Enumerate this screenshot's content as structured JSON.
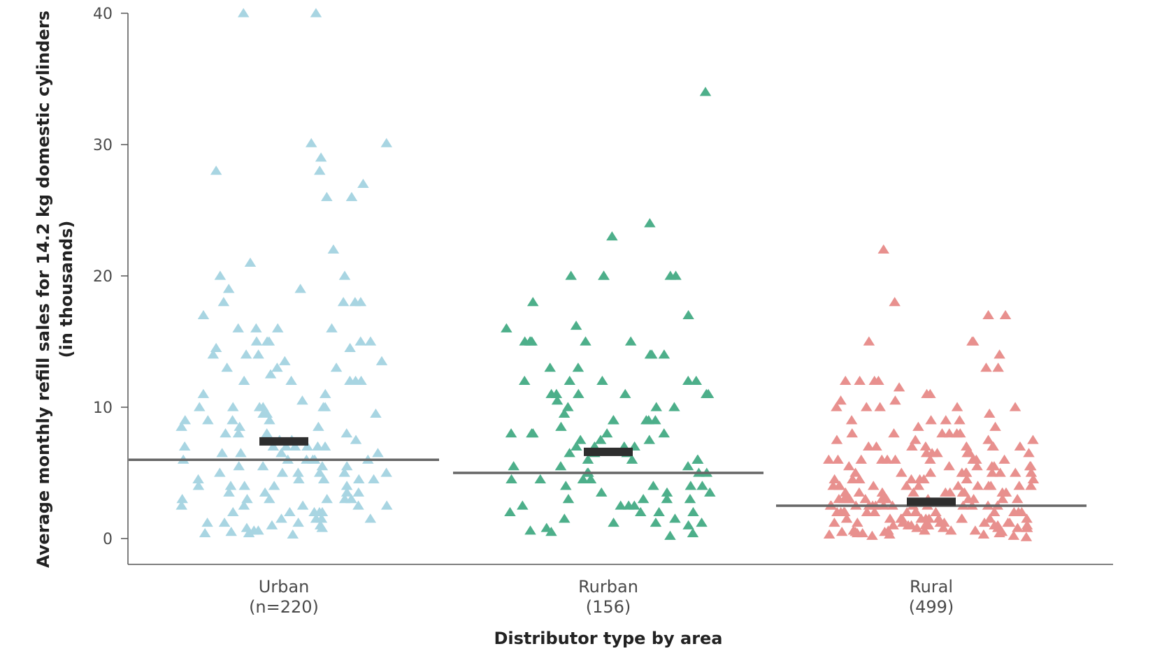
{
  "chart_data": {
    "type": "scatter",
    "title": "",
    "xlabel": "Distributor type by area",
    "ylabel_lines": [
      "Average monthly refill sales for 14.2 kg domestic cylinders",
      "(in thousands)"
    ],
    "ylim": [
      0,
      40
    ],
    "yticks": [
      0,
      10,
      20,
      30,
      40
    ],
    "grid": false,
    "legend": "none",
    "marker": "triangle",
    "series": [
      {
        "category_lines": [
          "Urban",
          "(n=220)"
        ],
        "color": "#a8d5e2",
        "median": 6.0,
        "mean": 7.4,
        "highlighted_points": [
          40,
          40,
          30.1,
          30.1,
          29,
          28,
          28,
          27,
          26,
          26,
          22,
          21,
          20,
          20,
          19,
          19,
          18,
          18,
          18,
          18,
          17,
          16,
          16,
          16,
          16,
          15,
          15,
          15,
          15,
          15,
          14.5,
          14.5,
          14,
          14,
          14,
          13.5,
          13.5,
          13,
          13,
          13,
          12.5,
          12,
          12,
          12,
          12,
          12,
          11,
          11,
          10.5,
          10,
          10,
          10,
          10,
          10,
          10,
          9.5,
          9.5,
          9.5,
          9,
          9,
          9,
          9,
          8.5,
          8.5,
          8.5,
          8,
          8,
          8,
          8,
          7.5,
          7.5,
          7.5,
          7,
          7,
          7,
          7,
          7,
          7,
          7,
          6.5,
          6.5,
          6.5,
          6.5,
          6,
          6,
          6,
          6,
          6,
          6,
          5.5,
          5.5,
          5.5,
          5.5,
          5,
          5,
          5,
          5,
          5,
          5,
          4.5,
          4.5,
          4.5,
          4.5,
          4.5,
          4,
          4,
          4,
          4,
          4,
          3.5,
          3.5,
          3.5,
          3.5,
          3,
          3,
          3,
          3,
          3,
          3,
          2.5,
          2.5,
          2.5,
          2.5,
          2.5,
          2,
          2,
          2,
          2,
          2,
          1.5,
          1.5,
          1.5,
          1.5,
          1.2,
          1.2,
          1.2,
          1,
          1,
          0.8,
          0.8,
          0.6,
          0.6,
          0.5,
          0.4,
          0.4,
          0.3
        ]
      },
      {
        "category_lines": [
          "Rurban",
          "(156)"
        ],
        "color": "#4daf8a",
        "median": 5.0,
        "mean": 6.6,
        "highlighted_points": [
          34,
          24,
          23,
          20,
          20,
          20,
          20,
          20,
          18,
          17,
          16.2,
          16,
          15,
          15,
          15,
          15,
          15,
          15,
          14,
          14,
          14,
          13,
          13,
          12,
          12,
          12,
          12,
          12,
          11,
          11,
          11,
          11,
          11,
          11,
          10.5,
          10,
          10,
          10,
          9.5,
          9,
          9,
          9,
          9,
          9,
          8.5,
          8,
          8,
          8,
          8,
          8,
          7.5,
          7.5,
          7.5,
          7,
          7,
          7,
          7,
          6.5,
          6.5,
          6.5,
          6,
          6,
          6,
          6,
          5.5,
          5.5,
          5.5,
          5,
          5,
          5,
          5,
          4.5,
          4.5,
          4.5,
          4.5,
          4,
          4,
          4,
          4,
          3.5,
          3.5,
          3.5,
          3,
          3,
          3,
          3,
          2.5,
          2.5,
          2.5,
          2.5,
          2,
          2,
          2,
          2,
          1.5,
          1.5,
          1.2,
          1.2,
          1.2,
          1,
          0.8,
          0.6,
          0.5,
          0.4,
          0.2
        ]
      },
      {
        "category_lines": [
          "Rural",
          "(499)"
        ],
        "color": "#e8908e",
        "median": 2.5,
        "mean": 2.8,
        "highlighted_points": [
          22,
          18,
          17,
          17,
          15,
          15,
          15,
          14,
          13,
          13,
          12,
          12,
          12,
          12,
          11.5,
          11,
          11,
          10.5,
          10.5,
          10,
          10,
          10,
          10,
          10,
          9.5,
          9,
          9,
          9,
          9,
          8.5,
          8.5,
          8,
          8,
          8,
          8,
          8,
          8,
          7.5,
          7.5,
          7.5,
          7.5,
          7,
          7,
          7,
          7,
          7,
          7,
          7,
          7,
          6.5,
          6.5,
          6.5,
          6.5,
          6.5,
          6.5,
          6,
          6,
          6,
          6,
          6,
          6,
          6,
          6,
          6,
          6,
          5.5,
          5.5,
          5.5,
          5.5,
          5.5,
          5.5,
          5.5,
          5,
          5,
          5,
          5,
          5,
          5,
          5,
          5,
          5,
          5,
          4.5,
          4.5,
          4.5,
          4.5,
          4.5,
          4.5,
          4.5,
          4.5,
          4,
          4,
          4,
          4,
          4,
          4,
          4,
          4,
          4,
          4,
          4,
          4,
          3.5,
          3.5,
          3.5,
          3.5,
          3.5,
          3.5,
          3.5,
          3.5,
          3.5,
          3.5,
          3,
          3,
          3,
          3,
          3,
          3,
          3,
          3,
          3,
          3,
          3,
          3,
          3,
          3,
          2.5,
          2.5,
          2.5,
          2.5,
          2.5,
          2.5,
          2.5,
          2.5,
          2.5,
          2.5,
          2.5,
          2.5,
          2.5,
          2.5,
          2,
          2,
          2,
          2,
          2,
          2,
          2,
          2,
          2,
          2,
          2,
          2,
          2,
          2,
          1.5,
          1.5,
          1.5,
          1.5,
          1.5,
          1.5,
          1.5,
          1.5,
          1.5,
          1.5,
          1.5,
          1.5,
          1.2,
          1.2,
          1.2,
          1.2,
          1.2,
          1.2,
          1.2,
          1.2,
          1.2,
          1,
          1,
          1,
          1,
          1,
          1,
          1,
          1,
          1,
          0.8,
          0.8,
          0.8,
          0.8,
          0.8,
          0.8,
          0.6,
          0.6,
          0.6,
          0.6,
          0.6,
          0.5,
          0.5,
          0.5,
          0.5,
          0.4,
          0.4,
          0.4,
          0.3,
          0.3,
          0.3,
          0.2,
          0.2,
          0.1
        ]
      }
    ]
  }
}
